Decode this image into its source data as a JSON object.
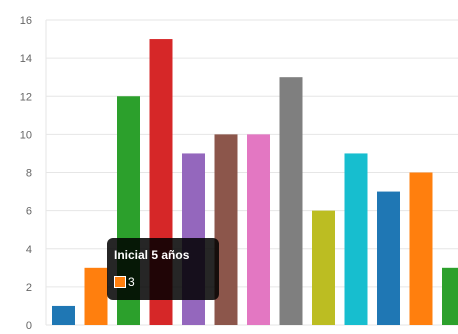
{
  "chart_data": {
    "type": "bar",
    "title": "",
    "xlabel": "",
    "ylabel": "",
    "ylim": [
      0,
      16
    ],
    "yticks": [
      0,
      2,
      4,
      6,
      8,
      10,
      12,
      14,
      16
    ],
    "grid": true,
    "bars": [
      {
        "value": 1,
        "color": "#1f77b4"
      },
      {
        "value": 3,
        "color": "#ff7f0e"
      },
      {
        "value": 12,
        "color": "#2ca02c"
      },
      {
        "value": 15,
        "color": "#d62728"
      },
      {
        "value": 9,
        "color": "#9467bd"
      },
      {
        "value": 10,
        "color": "#8c564b"
      },
      {
        "value": 10,
        "color": "#e377c2"
      },
      {
        "value": 13,
        "color": "#7f7f7f"
      },
      {
        "value": 6,
        "color": "#bcbd22"
      },
      {
        "value": 9,
        "color": "#17becf"
      },
      {
        "value": 7,
        "color": "#1f77b4"
      },
      {
        "value": 8,
        "color": "#ff7f0e"
      },
      {
        "value": 3,
        "color": "#2ca02c"
      }
    ]
  },
  "tooltip": {
    "title": "Inicial 5 años",
    "value": "3",
    "swatch_color": "#ff7f0e"
  }
}
